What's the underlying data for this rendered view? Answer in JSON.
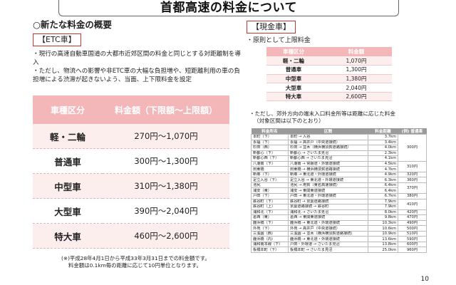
{
  "header": {
    "title": "首都高速の料金について"
  },
  "left": {
    "section_title": "○新たな料金の概要",
    "tag": "【ETC車】",
    "bullets": [
      "・現行の高速自動車国道の大都市近郊区間の料金と同じとする対距離制を導入",
      "・ただし、物流への影響や非ETC車の大幅な負担増や、短距離利用の車の負担増による渋滞が起きないよう、当面、上下限料金を設定"
    ],
    "table": {
      "headers": [
        "車種区分",
        "料金額（下限額〜上限額）"
      ],
      "rows": [
        {
          "category": "軽・二輪",
          "amount": "270円〜1,070円"
        },
        {
          "category": "普通車",
          "amount": "300円〜1,300円"
        },
        {
          "category": "中型車",
          "amount": "310円〜1,380円"
        },
        {
          "category": "大型車",
          "amount": "390円〜2,040円"
        },
        {
          "category": "特大車",
          "amount": "460円〜2,600円"
        }
      ]
    },
    "note_line1": "(※)平成28年4月1日から平成33年3月31日までの料金額です。",
    "note_line2": "料金額は0.1km毎の距離に応じて10円単位となります。"
  },
  "right": {
    "tag": "【現金車】",
    "subtitle": "・原則として上限料金",
    "cash_table": {
      "headers": [
        "車種区分",
        "料金額"
      ],
      "rows": [
        {
          "category": "軽・二輪",
          "amount": "1,070円"
        },
        {
          "category": "普通車",
          "amount": "1,300円"
        },
        {
          "category": "中型車",
          "amount": "1,380円"
        },
        {
          "category": "大型車",
          "amount": "2,040円"
        },
        {
          "category": "特大車",
          "amount": "2,600円"
        }
      ]
    },
    "note_line1": "・ただし、郊外方向の端末入口料金所等は距離に応じた料金",
    "note_line2": "（対象区間は以下のとおり）",
    "dist_table": {
      "headers": [
        "料金所名",
        "区間",
        "料金距離",
        "(例) 普通車"
      ],
      "rows": [
        {
          "tollgate": "本町（下）",
          "section": "本町 → 入谷",
          "distance": "3.7km",
          "fare": "300円"
        },
        {
          "tollgate": "永福（下）",
          "section": "永福 → 高井戸（中央道接続）",
          "distance": "3.4km",
          "fare": ""
        },
        {
          "tollgate": "杉田（西）",
          "section": "杉田 → 並木（横浜横須賀道路接続）",
          "distance": "4.0km",
          "fare": ""
        },
        {
          "tollgate": "新都心（下）",
          "section": "新都心 → さいたま見沼",
          "distance": "2.3km",
          "fare": ""
        },
        {
          "tollgate": "新都心西（下）",
          "section": "新都心西 → さいたま見沼",
          "distance": "4.1km",
          "fare": ""
        },
        {
          "tollgate": "八潮南（下）",
          "section": "八潮南 → 常磐道・外環道接続",
          "distance": "4.5km",
          "fare": "310円"
        },
        {
          "tollgate": "田東橋",
          "section": "田東橋 → 横浜横須賀道路接続",
          "distance": "4.7km",
          "fare": ""
        },
        {
          "tollgate": "新郷（下）",
          "section": "新郷 → 東北道・外環道接続",
          "distance": "4.9km",
          "fare": "320円"
        },
        {
          "tollgate": "足立入谷（下）",
          "section": "足立入谷 → 東北道・外環道接続",
          "distance": "6.3km",
          "fare": "360円"
        },
        {
          "tollgate": "池尻",
          "section": "池尻 → 用賀（東名高速接続）",
          "distance": "6.4km",
          "fare": "370円"
        },
        {
          "tollgate": "浦安（東）",
          "section": "浦安 → 東関東道接続",
          "distance": "6.4km",
          "fare": ""
        },
        {
          "tollgate": "戸田（下）",
          "section": "戸田 → 東北道・外環道接続",
          "distance": "6.7km",
          "fare": "380円"
        },
        {
          "tollgate": "鉄谷町（下）",
          "section": "鉄谷町 → 京葉道路接続",
          "distance": "7.9km",
          "fare": "410円"
        },
        {
          "tollgate": "鉄谷町（上）",
          "section": "京葉道路接続 → 鉄谷町",
          "distance": "7.9km",
          "fare": ""
        },
        {
          "tollgate": "浦和北（下）",
          "section": "浦和北 → さいたま見沼",
          "distance": "8.0km",
          "fare": "420円"
        },
        {
          "tollgate": "葛西（東）",
          "section": "葛西 → 東関東道接続",
          "distance": "9.8km",
          "fare": "470円"
        },
        {
          "tollgate": "鹿浜橋（下）",
          "section": "鹿浜橋 → 東北道・外環道接続",
          "distance": "10.3km",
          "fare": "490円"
        },
        {
          "tollgate": "外苑（下）",
          "section": "外苑 → 高井戸（中央道接続）",
          "distance": "10.6km",
          "fare": "500円"
        },
        {
          "tollgate": "三溪園（西）",
          "section": "三溪園 → 並木（横浜横須賀道路接続）",
          "distance": "10.9km",
          "fare": "510円"
        },
        {
          "tollgate": "鹿浜橋（内）",
          "section": "鹿浜橋 → 東北道・外環道接続",
          "distance": "13.6km",
          "fare": "590円"
        },
        {
          "tollgate": "浦和南本線（下）",
          "section": "戸田・外環道 → さいたま見沼",
          "distance": "13.8km",
          "fare": "600円"
        },
        {
          "tollgate": "板橋本町（下）",
          "section": "板橋本町 → さいたま見沼",
          "distance": "25.0km",
          "fare": "960円"
        }
      ]
    }
  },
  "page_number": "10"
}
